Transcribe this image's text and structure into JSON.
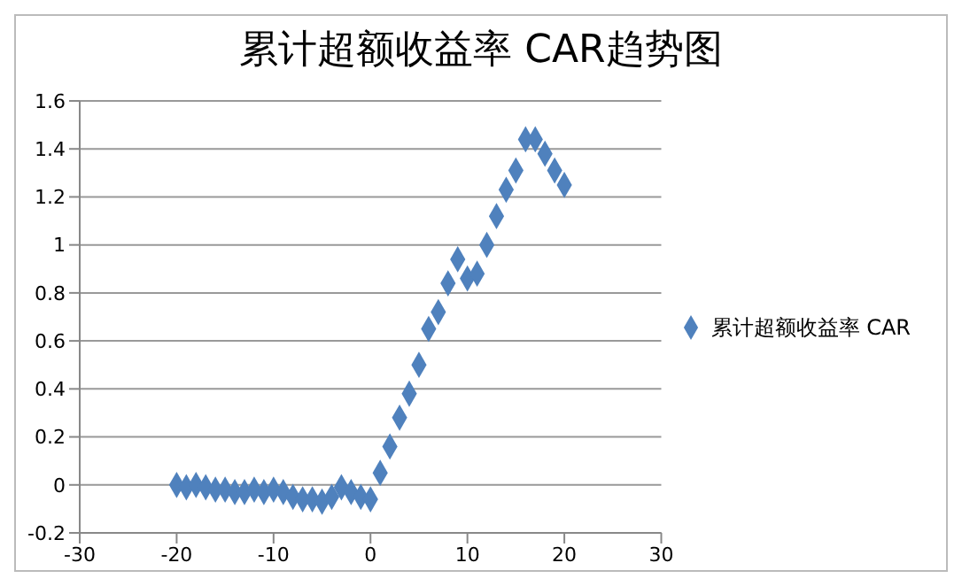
{
  "chart_data": {
    "type": "scatter",
    "title": "累计超额收益率 CAR趋势图",
    "x": [
      -20,
      -19,
      -18,
      -17,
      -16,
      -15,
      -14,
      -13,
      -12,
      -11,
      -10,
      -9,
      -8,
      -7,
      -6,
      -5,
      -4,
      -3,
      -2,
      -1,
      0,
      1,
      2,
      3,
      4,
      5,
      6,
      7,
      8,
      9,
      10,
      11,
      12,
      13,
      14,
      15,
      16,
      17,
      18,
      19,
      20
    ],
    "series": [
      {
        "name": "累计超额收益率 CAR",
        "color": "#4f81bd",
        "values": [
          0.0,
          -0.01,
          0.0,
          -0.01,
          -0.02,
          -0.02,
          -0.03,
          -0.03,
          -0.02,
          -0.03,
          -0.02,
          -0.03,
          -0.05,
          -0.06,
          -0.06,
          -0.07,
          -0.05,
          -0.01,
          -0.03,
          -0.05,
          -0.06,
          0.05,
          0.16,
          0.28,
          0.38,
          0.5,
          0.65,
          0.72,
          0.84,
          0.94,
          0.86,
          0.88,
          1.0,
          1.12,
          1.23,
          1.31,
          1.44,
          1.44,
          1.38,
          1.31,
          1.25
        ]
      }
    ],
    "xlim": [
      -30,
      30
    ],
    "xticks": [
      -30,
      -20,
      -10,
      0,
      10,
      20,
      30
    ],
    "ylim": [
      -0.2,
      1.6
    ],
    "yticks": [
      -0.2,
      0,
      0.2,
      0.4,
      0.6,
      0.8,
      1,
      1.2,
      1.4,
      1.6
    ],
    "grid": "y",
    "legend": "right",
    "marker": "diamond"
  }
}
